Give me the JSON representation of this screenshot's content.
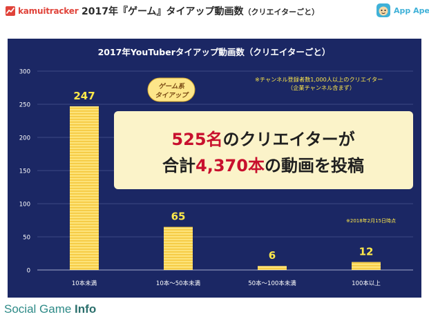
{
  "header": {
    "brand_left": "kamuitracker",
    "title_main": "2017年『ゲーム』タイアップ動画数",
    "title_sub": "（クリエイターごと）",
    "brand_right": "App Ape"
  },
  "footer": {
    "site_part1": "Social Game ",
    "site_part2": "Info"
  },
  "annotations": {
    "badge_line1": "ゲーム系",
    "badge_line2": "タイアップ",
    "note_line1": "※チャンネル登録者数1,000人以上のクリエイター",
    "note_line2": "（企業チャンネル含まず）",
    "date_note": "※2018年2月15日時点",
    "callout_line1_num": "525名",
    "callout_line1_rest": "のクリエイターが",
    "callout_line2_pre": "合計",
    "callout_line2_num": "4,370本",
    "callout_line2_rest": "の動画を投稿"
  },
  "colors": {
    "panel_bg": "#1b2764",
    "bar_fill": "#fde37a",
    "bar_stripe": "#f4c83c",
    "value_label": "#ffe94a",
    "axis_text": "#ffffff",
    "callout_bg": "#fbf3c9",
    "callout_red": "#c8102e",
    "callout_dark": "#1f1f1f",
    "badge_bg": "#fde68a"
  },
  "chart_data": {
    "type": "bar",
    "title": "2017年YouTuberタイアップ動画数（クリエイターごと）",
    "categories": [
      "10本未満",
      "10本～50本未満",
      "50本～100本未満",
      "100本以上"
    ],
    "values": [
      247,
      65,
      6,
      12
    ],
    "value_labels": [
      "247",
      "65",
      "6",
      "12"
    ],
    "yticks": [
      "0",
      "50",
      "100",
      "150",
      "200",
      "250",
      "300"
    ],
    "ylim": [
      0,
      300
    ],
    "grid": true,
    "legend": "none"
  }
}
